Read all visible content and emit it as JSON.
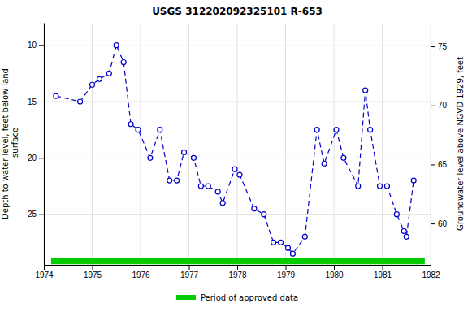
{
  "chart_data": {
    "type": "line",
    "title": "USGS 312202092325101 R-653",
    "ylabel": "Depth to water level, feet below land\n surface",
    "y2label": "Groundwater level above NGVD 1929, feet",
    "series": [
      {
        "color": "#0000cc",
        "line_style": "dashed",
        "marker": "circle",
        "x": [
          1974.25,
          1974.75,
          1975.0,
          1975.15,
          1975.35,
          1975.5,
          1975.65,
          1975.8,
          1975.95,
          1976.2,
          1976.4,
          1976.6,
          1976.75,
          1976.9,
          1977.1,
          1977.25,
          1977.4,
          1977.6,
          1977.7,
          1977.95,
          1978.05,
          1978.35,
          1978.55,
          1978.75,
          1978.9,
          1979.05,
          1979.15,
          1979.4,
          1979.65,
          1979.8,
          1980.05,
          1980.2,
          1980.5,
          1980.65,
          1980.75,
          1980.95,
          1981.1,
          1981.3,
          1981.45,
          1981.5,
          1981.65
        ],
        "values": [
          14.5,
          15.0,
          13.5,
          13.0,
          12.5,
          10.0,
          11.5,
          17.0,
          17.5,
          20.0,
          17.5,
          22.0,
          22.0,
          19.5,
          20.0,
          22.5,
          22.5,
          23.0,
          24.0,
          21.0,
          21.5,
          24.5,
          25.0,
          27.5,
          27.5,
          28.0,
          28.5,
          27.0,
          17.5,
          20.5,
          17.5,
          20.0,
          22.5,
          14.0,
          17.5,
          22.5,
          22.5,
          25.0,
          26.5,
          27.0,
          22.0
        ]
      },
      {
        "name": "Period of approved data",
        "color": "#00cc00",
        "line_style": "solid",
        "x": [
          1974.15,
          1981.88
        ],
        "values": [
          29.15,
          29.15
        ]
      }
    ],
    "xlim": [
      1974.0,
      1982.0
    ],
    "xticks": [
      1974,
      1975,
      1976,
      1977,
      1978,
      1979,
      1980,
      1981,
      1982
    ],
    "ylim": [
      29.5,
      8.0
    ],
    "yticks": [
      10,
      15,
      20,
      25
    ],
    "y2lim": [
      56.5,
      77.0
    ],
    "y2ticks": [
      60,
      65,
      70,
      75
    ],
    "grid": true,
    "legend": "bottom"
  }
}
